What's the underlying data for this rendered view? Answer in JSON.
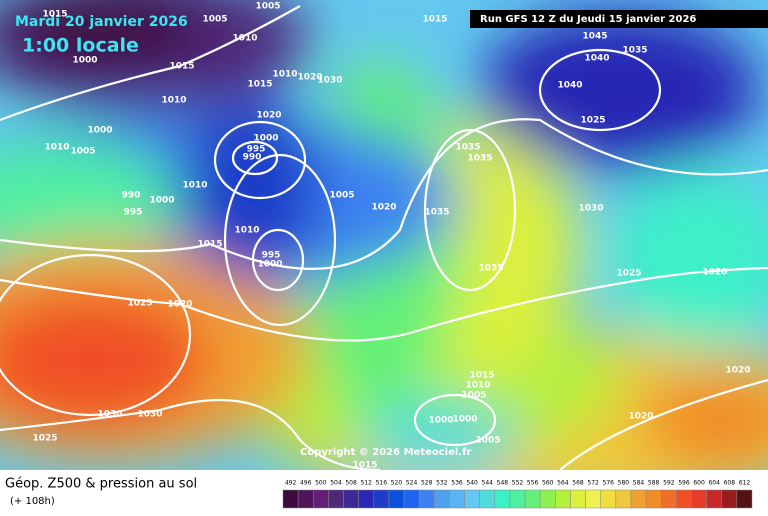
{
  "header": {
    "date": "Mardi 20 janvier 2026",
    "time": "1:00 locale",
    "run": "Run GFS 12 Z du Jeudi 15 janvier 2026"
  },
  "copyright": "Copyright © 2026 Meteociel.fr",
  "legend": {
    "title": "Géop. Z500 & pression au sol",
    "lead": "(+ 108h)",
    "scale": {
      "values": [
        492,
        496,
        500,
        504,
        508,
        512,
        516,
        520,
        524,
        528,
        532,
        536,
        540,
        544,
        548,
        552,
        556,
        560,
        564,
        568,
        572,
        576,
        580,
        584,
        588,
        592,
        596,
        600,
        604,
        608,
        612
      ],
      "colors": [
        "#3c0a3c",
        "#50145a",
        "#641e78",
        "#502878",
        "#3c2896",
        "#2828b4",
        "#1e3cc8",
        "#0a50dc",
        "#1e64f0",
        "#3c82f0",
        "#50a0f0",
        "#5ab4f0",
        "#64c8f0",
        "#50dcdc",
        "#3cf0c8",
        "#50f0a0",
        "#64f078",
        "#8cf050",
        "#b4f03c",
        "#dcf03c",
        "#f0f050",
        "#f0dc3c",
        "#f0c83c",
        "#f0a032",
        "#f08c28",
        "#f06e28",
        "#f05028",
        "#e63c28",
        "#c82828",
        "#961e1e",
        "#501414"
      ]
    }
  },
  "isobar_labels": [
    1015,
    1005,
    1005,
    1015,
    1010,
    1000,
    1015,
    1010,
    1015,
    1010,
    1020,
    1030,
    1045,
    1035,
    1040,
    1040,
    1025,
    1000,
    1010,
    1005,
    1000,
    995,
    990,
    1020,
    1035,
    1035,
    1010,
    990,
    995,
    1000,
    1005,
    1020,
    1035,
    1030,
    1015,
    1010,
    995,
    1000,
    1035,
    1025,
    1020,
    1025,
    1020,
    1015,
    1010,
    1005,
    1020,
    1000,
    1000,
    1030,
    1030,
    1025,
    1020,
    1005,
    1015
  ]
}
